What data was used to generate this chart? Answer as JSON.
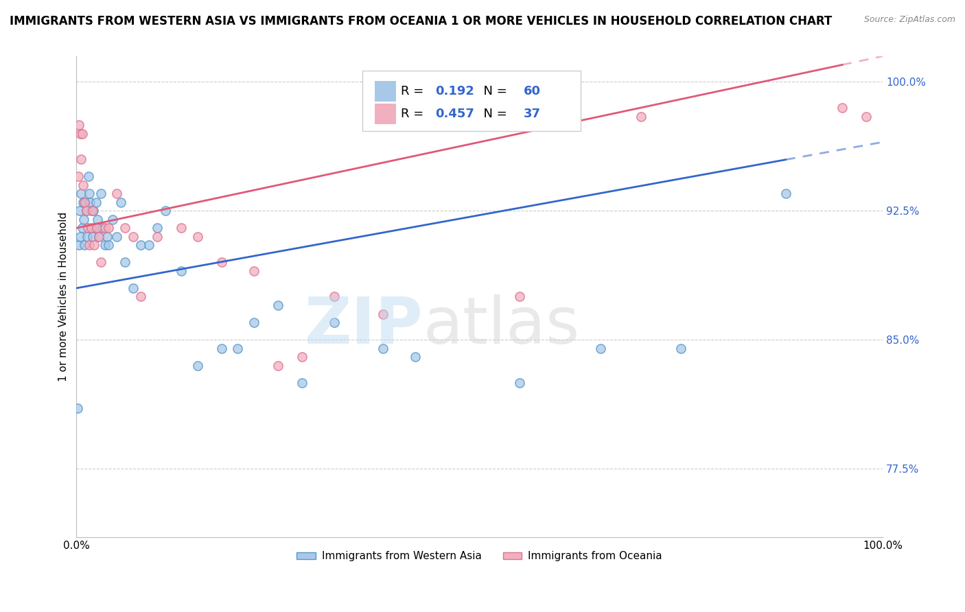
{
  "title": "IMMIGRANTS FROM WESTERN ASIA VS IMMIGRANTS FROM OCEANIA 1 OR MORE VEHICLES IN HOUSEHOLD CORRELATION CHART",
  "source": "Source: ZipAtlas.com",
  "ylabel": "1 or more Vehicles in Household",
  "yticks": [
    77.5,
    85.0,
    92.5,
    100.0
  ],
  "ytick_labels": [
    "77.5%",
    "85.0%",
    "92.5%",
    "100.0%"
  ],
  "legend_label_blue": "Immigrants from Western Asia",
  "legend_label_pink": "Immigrants from Oceania",
  "R_blue": "0.192",
  "N_blue": "60",
  "R_pink": "0.457",
  "N_pink": "37",
  "blue_fill": "#a8c8e8",
  "blue_edge": "#5599cc",
  "pink_fill": "#f0b0c0",
  "pink_edge": "#e07090",
  "line_blue": "#3366cc",
  "line_pink": "#e05878",
  "watermark_zip": "ZIP",
  "watermark_atlas": "atlas",
  "blue_x": [
    0.15,
    0.3,
    0.4,
    0.5,
    0.6,
    0.7,
    0.8,
    0.9,
    1.0,
    1.1,
    1.2,
    1.3,
    1.5,
    1.6,
    1.7,
    1.8,
    2.0,
    2.1,
    2.2,
    2.4,
    2.6,
    2.8,
    3.0,
    3.2,
    3.5,
    3.8,
    4.0,
    4.5,
    5.0,
    5.5,
    6.0,
    7.0,
    8.0,
    9.0,
    10.0,
    11.0,
    13.0,
    15.0,
    18.0,
    20.0,
    22.0,
    25.0,
    28.0,
    32.0,
    38.0,
    42.0,
    55.0,
    65.0,
    75.0,
    88.0
  ],
  "blue_y": [
    81.0,
    90.5,
    92.5,
    91.0,
    93.5,
    91.5,
    93.0,
    92.0,
    90.5,
    93.0,
    92.5,
    91.0,
    94.5,
    93.5,
    93.0,
    92.5,
    91.0,
    92.5,
    91.5,
    93.0,
    92.0,
    91.0,
    93.5,
    91.5,
    90.5,
    91.0,
    90.5,
    92.0,
    91.0,
    93.0,
    89.5,
    88.0,
    90.5,
    90.5,
    91.5,
    92.5,
    89.0,
    83.5,
    84.5,
    84.5,
    86.0,
    87.0,
    82.5,
    86.0,
    84.5,
    84.0,
    82.5,
    84.5,
    84.5,
    93.5
  ],
  "pink_x": [
    0.2,
    0.3,
    0.5,
    0.6,
    0.7,
    0.8,
    1.0,
    1.2,
    1.4,
    1.6,
    1.8,
    2.0,
    2.2,
    2.5,
    2.8,
    3.0,
    3.5,
    4.0,
    5.0,
    6.0,
    7.0,
    8.0,
    10.0,
    13.0,
    15.0,
    18.0,
    22.0,
    25.0,
    28.0,
    32.0,
    38.0,
    55.0,
    70.0,
    95.0,
    98.0
  ],
  "pink_y": [
    94.5,
    97.5,
    97.0,
    95.5,
    97.0,
    94.0,
    93.0,
    92.5,
    91.5,
    90.5,
    91.5,
    92.5,
    90.5,
    91.5,
    91.0,
    89.5,
    91.5,
    91.5,
    93.5,
    91.5,
    91.0,
    87.5,
    91.0,
    91.5,
    91.0,
    89.5,
    89.0,
    83.5,
    84.0,
    87.5,
    86.5,
    87.5,
    98.0,
    98.5,
    98.0
  ],
  "xlim": [
    0,
    100
  ],
  "ylim": [
    73.5,
    101.5
  ],
  "blue_line": [
    [
      0,
      100
    ],
    [
      88.0,
      96.5
    ]
  ],
  "pink_line": [
    [
      0,
      100
    ],
    [
      91.5,
      101.5
    ]
  ],
  "blue_solid_end": 88.0,
  "pink_solid_end": 95.0,
  "grid_color": "#cccccc",
  "background_color": "#ffffff",
  "title_fontsize": 12,
  "source_fontsize": 9,
  "tick_fontsize": 11,
  "legend_fontsize": 13
}
